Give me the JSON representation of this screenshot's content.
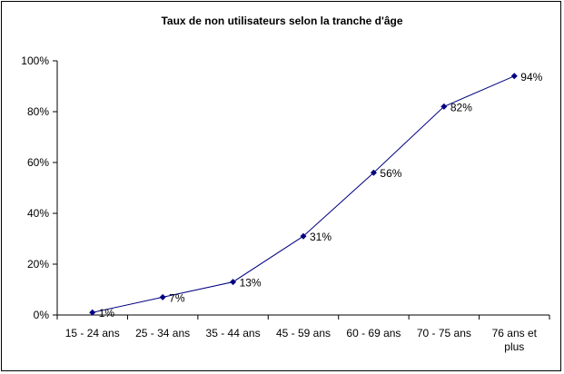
{
  "chart_data": {
    "type": "line",
    "title": "Taux de non utilisateurs selon la tranche d'âge",
    "xlabel": "",
    "ylabel": "",
    "categories": [
      "15 - 24 ans",
      "25 - 34 ans",
      "35 - 44 ans",
      "45 - 59 ans",
      "60 - 69 ans",
      "70 - 75 ans",
      "76 ans et plus"
    ],
    "category_lines": [
      [
        "15 - 24 ans"
      ],
      [
        "25 - 34 ans"
      ],
      [
        "35 - 44 ans"
      ],
      [
        "45 - 59 ans"
      ],
      [
        "60 - 69 ans"
      ],
      [
        "70 - 75 ans"
      ],
      [
        "76 ans et",
        "plus"
      ]
    ],
    "values": [
      1,
      7,
      13,
      31,
      56,
      82,
      94
    ],
    "data_labels": [
      "1%",
      "7%",
      "13%",
      "31%",
      "56%",
      "82%",
      "94%"
    ],
    "ylim": [
      0,
      100
    ],
    "yticks": [
      0,
      20,
      40,
      60,
      80,
      100
    ],
    "ytick_labels": [
      "0%",
      "20%",
      "40%",
      "60%",
      "80%",
      "100%"
    ],
    "grid": false,
    "legend": "none",
    "line_color": "#000080"
  }
}
